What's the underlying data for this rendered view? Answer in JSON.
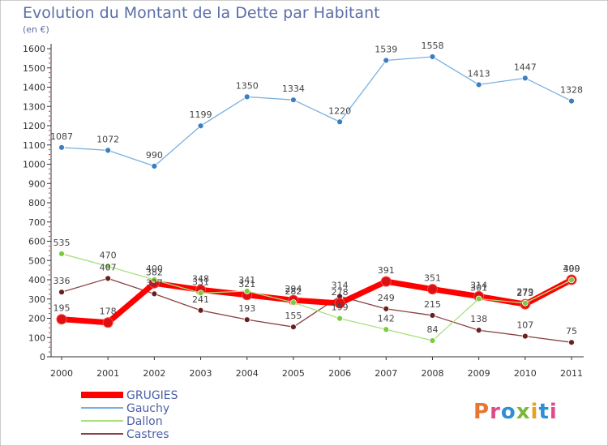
{
  "chart_data": {
    "type": "line",
    "title": "Evolution du Montant de la Dette par Habitant",
    "subtitle": "(en €)",
    "xlabel": "",
    "ylabel": "",
    "categories": [
      "2000",
      "2001",
      "2002",
      "2003",
      "2004",
      "2005",
      "2006",
      "2007",
      "2008",
      "2009",
      "2010",
      "2011"
    ],
    "ylim": [
      0,
      1600
    ],
    "yticks": [
      0,
      100,
      200,
      300,
      400,
      500,
      600,
      700,
      800,
      900,
      1000,
      1100,
      1200,
      1300,
      1400,
      1500,
      1600
    ],
    "grid": false,
    "legend_position": "bottom-left",
    "series": [
      {
        "name": "GRUGIES",
        "color": "#ff0000",
        "marker_color": "#ee1111",
        "values": [
          195,
          178,
          382,
          348,
          321,
          294,
          278,
          391,
          351,
          314,
          273,
          400
        ]
      },
      {
        "name": "Gauchy",
        "color": "#7ab0e0",
        "marker_color": "#3a7fc0",
        "values": [
          1087,
          1072,
          990,
          1199,
          1350,
          1334,
          1220,
          1539,
          1558,
          1413,
          1447,
          1328
        ]
      },
      {
        "name": "Dallon",
        "color": "#a8e080",
        "marker_color": "#7acc3a",
        "values": [
          535,
          470,
          400,
          331,
          341,
          282,
          199,
          142,
          84,
          301,
          279,
          399
        ]
      },
      {
        "name": "Castres",
        "color": "#8a4040",
        "marker_color": "#6a2020",
        "values": [
          336,
          407,
          327,
          241,
          193,
          155,
          314,
          249,
          215,
          138,
          107,
          75
        ]
      }
    ]
  },
  "logo_text": "Proxiti",
  "logo_colors": [
    "#e8772e",
    "#e04a8a",
    "#2e8fd6",
    "#7ab83a",
    "#e8a020",
    "#2e8fd6",
    "#e04a8a"
  ]
}
